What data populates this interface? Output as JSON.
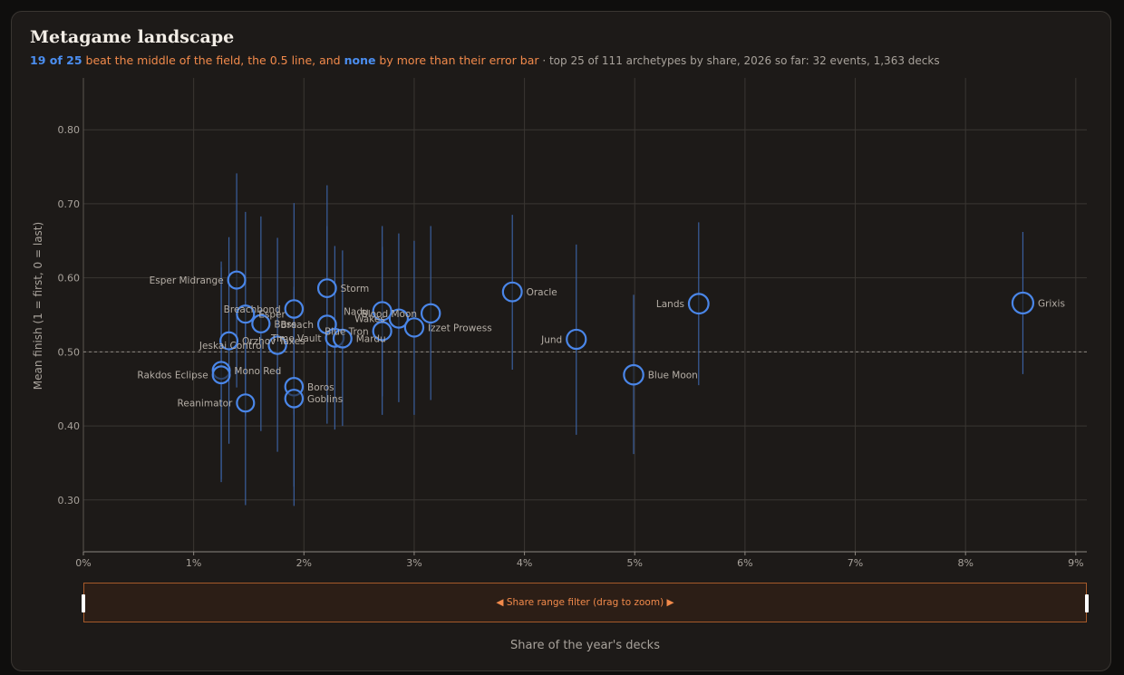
{
  "header": {
    "title": "Metagame landscape",
    "subtitle_count": "19 of 25",
    "subtitle_beat": " beat the middle of the field, the 0.5 line, and ",
    "subtitle_none": "none",
    "subtitle_margin": " by more than their error bar",
    "subtitle_rest": " · top 25 of 111 archetypes by share, 2026 so far: 32 events, 1,363 decks"
  },
  "colors": {
    "point_stroke": "#4a86e8",
    "error_bar": "#3a5f9e",
    "grid": "#3a3632",
    "reference_line": "#8c8781",
    "accent_orange": "#f28a4b",
    "accent_blue": "#4b8ef0"
  },
  "chart_data": {
    "type": "scatter",
    "xlabel": "Share of the year's decks",
    "ylabel": "Mean finish (1 = first, 0 = last)",
    "xlim": [
      0,
      9.1
    ],
    "ylim": [
      0.23,
      0.87
    ],
    "x_unit": "%",
    "x_ticks": [
      0,
      1,
      2,
      3,
      4,
      5,
      6,
      7,
      8,
      9
    ],
    "x_tick_labels": [
      "0%",
      "1%",
      "2%",
      "3%",
      "4%",
      "5%",
      "6%",
      "7%",
      "8%",
      "9%"
    ],
    "y_ticks": [
      0.3,
      0.4,
      0.5,
      0.6,
      0.7,
      0.8
    ],
    "y_tick_labels": [
      "0.30",
      "0.40",
      "0.50",
      "0.60",
      "0.70",
      "0.80"
    ],
    "reference_y": 0.5,
    "grid": true,
    "points": [
      {
        "name": "Grixis",
        "x": 8.52,
        "y": 0.566,
        "lo": 0.47,
        "hi": 0.662,
        "label_side": "right"
      },
      {
        "name": "Lands",
        "x": 5.58,
        "y": 0.565,
        "lo": 0.455,
        "hi": 0.675,
        "label_side": "left"
      },
      {
        "name": "Blue Moon",
        "x": 4.99,
        "y": 0.469,
        "lo": 0.362,
        "hi": 0.577,
        "label_side": "right"
      },
      {
        "name": "Jund",
        "x": 4.47,
        "y": 0.517,
        "lo": 0.388,
        "hi": 0.645,
        "label_side": "left"
      },
      {
        "name": "Oracle",
        "x": 3.89,
        "y": 0.581,
        "lo": 0.476,
        "hi": 0.685,
        "label_side": "right"
      },
      {
        "name": "Izzet Prowess",
        "x": 3.0,
        "y": 0.533,
        "lo": 0.415,
        "hi": 0.65,
        "label_side": "right"
      },
      {
        "name": "Blood Moon",
        "x": 3.15,
        "y": 0.552,
        "lo": 0.435,
        "hi": 0.67,
        "label_side": "left"
      },
      {
        "name": "Wakes",
        "x": 2.86,
        "y": 0.545,
        "lo": 0.432,
        "hi": 0.66,
        "label_side": "left"
      },
      {
        "name": "Nadu",
        "x": 2.71,
        "y": 0.555,
        "lo": 0.44,
        "hi": 0.67,
        "label_side": "left"
      },
      {
        "name": "Blue Tron",
        "x": 2.71,
        "y": 0.528,
        "lo": 0.415,
        "hi": 0.642,
        "label_side": "left"
      },
      {
        "name": "Mardu",
        "x": 2.35,
        "y": 0.518,
        "lo": 0.4,
        "hi": 0.637,
        "label_side": "right"
      },
      {
        "name": "Time Vault",
        "x": 2.28,
        "y": 0.519,
        "lo": 0.395,
        "hi": 0.643,
        "label_side": "left"
      },
      {
        "name": "Storm",
        "x": 2.21,
        "y": 0.586,
        "lo": 0.448,
        "hi": 0.725,
        "label_side": "right"
      },
      {
        "name": "Breach",
        "x": 2.21,
        "y": 0.537,
        "lo": 0.403,
        "hi": 0.67,
        "label_side": "left"
      },
      {
        "name": "Boros",
        "x": 1.91,
        "y": 0.453,
        "lo": 0.318,
        "hi": 0.588,
        "label_side": "right"
      },
      {
        "name": "Goblins",
        "x": 1.91,
        "y": 0.437,
        "lo": 0.292,
        "hi": 0.582,
        "label_side": "right"
      },
      {
        "name": "Breachbond",
        "x": 1.91,
        "y": 0.558,
        "lo": 0.415,
        "hi": 0.701,
        "label_side": "left"
      },
      {
        "name": "Jeskai Control",
        "x": 1.76,
        "y": 0.509,
        "lo": 0.365,
        "hi": 0.654,
        "label_side": "left"
      },
      {
        "name": "Boss",
        "x": 1.61,
        "y": 0.538,
        "lo": 0.393,
        "hi": 0.683,
        "label_side": "right"
      },
      {
        "name": "Esper",
        "x": 1.47,
        "y": 0.551,
        "lo": 0.413,
        "hi": 0.689,
        "label_side": "right"
      },
      {
        "name": "Reanimator",
        "x": 1.47,
        "y": 0.431,
        "lo": 0.293,
        "hi": 0.569,
        "label_side": "left"
      },
      {
        "name": "Esper Midrange",
        "x": 1.39,
        "y": 0.597,
        "lo": 0.452,
        "hi": 0.741,
        "label_side": "left"
      },
      {
        "name": "Orzhov Taxes",
        "x": 1.32,
        "y": 0.515,
        "lo": 0.376,
        "hi": 0.655,
        "label_side": "right"
      },
      {
        "name": "Mono Red",
        "x": 1.25,
        "y": 0.475,
        "lo": 0.328,
        "hi": 0.622,
        "label_side": "right"
      },
      {
        "name": "Rakdos Eclipse",
        "x": 1.25,
        "y": 0.469,
        "lo": 0.324,
        "hi": 0.614,
        "label_side": "left"
      }
    ]
  },
  "brush": {
    "label": "◀ Share range filter (drag to zoom) ▶"
  }
}
